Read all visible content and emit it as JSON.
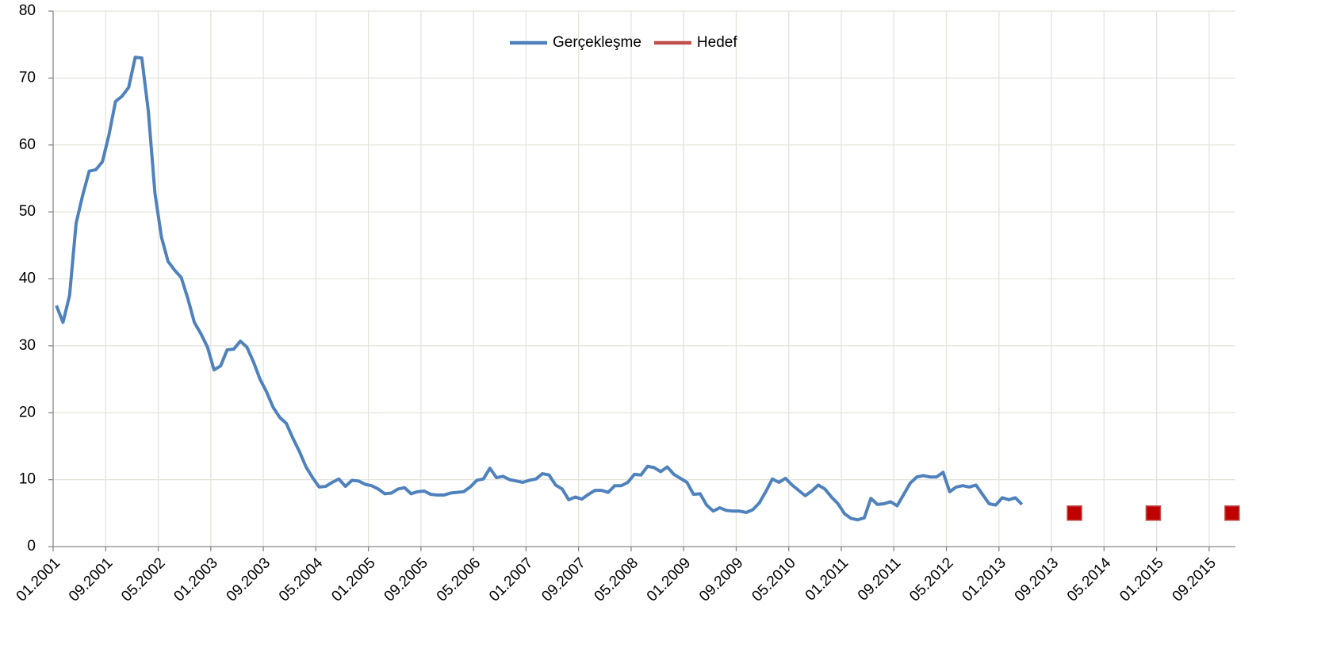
{
  "chart_data": {
    "type": "line",
    "categories": [
      "01.2001",
      null,
      null,
      null,
      null,
      null,
      null,
      null,
      "09.2001",
      null,
      null,
      null,
      null,
      null,
      null,
      null,
      "05.2002",
      null,
      null,
      null,
      null,
      null,
      null,
      null,
      "01.2003",
      null,
      null,
      null,
      null,
      null,
      null,
      null,
      "09.2003",
      null,
      null,
      null,
      null,
      null,
      null,
      null,
      "05.2004",
      null,
      null,
      null,
      null,
      null,
      null,
      null,
      "01.2005",
      null,
      null,
      null,
      null,
      null,
      null,
      null,
      "09.2005",
      null,
      null,
      null,
      null,
      null,
      null,
      null,
      "05.2006",
      null,
      null,
      null,
      null,
      null,
      null,
      null,
      "01.2007",
      null,
      null,
      null,
      null,
      null,
      null,
      null,
      "09.2007",
      null,
      null,
      null,
      null,
      null,
      null,
      null,
      "05.2008",
      null,
      null,
      null,
      null,
      null,
      null,
      null,
      "01.2009",
      null,
      null,
      null,
      null,
      null,
      null,
      null,
      "09.2009",
      null,
      null,
      null,
      null,
      null,
      null,
      null,
      "05.2010",
      null,
      null,
      null,
      null,
      null,
      null,
      null,
      "01.2011",
      null,
      null,
      null,
      null,
      null,
      null,
      null,
      "09.2011",
      null,
      null,
      null,
      null,
      null,
      null,
      null,
      "05.2012",
      null,
      null,
      null,
      null,
      null,
      null,
      null,
      "01.2013",
      null,
      null,
      null,
      null,
      null,
      null,
      null,
      "09.2013",
      null,
      null,
      null,
      null,
      null,
      null,
      null,
      "05.2014",
      null,
      null,
      null,
      null,
      null,
      null,
      null,
      "01.2015",
      null,
      null,
      null,
      null,
      null,
      null,
      null,
      "09.2015",
      null,
      null,
      null
    ],
    "series": [
      {
        "name": "Gerçekleşme",
        "color": "#4f81bd",
        "marker": "none",
        "values": [
          36,
          33.5,
          37.5,
          48.3,
          52.5,
          56.1,
          56.3,
          57.5,
          61.5,
          66.5,
          67.3,
          68.6,
          73.1,
          73,
          65,
          52.8,
          46.2,
          42.6,
          41.3,
          40.2,
          37.1,
          33.5,
          31.8,
          29.8,
          26.4,
          27,
          29.4,
          29.5,
          30.7,
          29.8,
          27.6,
          25,
          23.1,
          20.8,
          19.3,
          18.4,
          16.2,
          14.2,
          11.9,
          10.3,
          8.9,
          9,
          9.6,
          10.1,
          9,
          9.9,
          9.8,
          9.3,
          9.1,
          8.6,
          7.9,
          8,
          8.6,
          8.8,
          7.9,
          8.2,
          8.3,
          7.8,
          7.7,
          7.7,
          8,
          8.1,
          8.2,
          8.9,
          9.9,
          10.1,
          11.7,
          10.3,
          10.5,
          10,
          9.8,
          9.6,
          9.9,
          10.1,
          10.9,
          10.7,
          9.2,
          8.6,
          7,
          7.4,
          7.1,
          7.8,
          8.4,
          8.4,
          8.1,
          9.1,
          9.1,
          9.6,
          10.8,
          10.7,
          12,
          11.8,
          11.2,
          11.9,
          10.8,
          10.2,
          9.6,
          7.8,
          7.9,
          6.2,
          5.3,
          5.8,
          5.4,
          5.3,
          5.3,
          5.1,
          5.5,
          6.5,
          8.2,
          10.1,
          9.6,
          10.2,
          9.2,
          8.4,
          7.6,
          8.3,
          9.2,
          8.6,
          7.4,
          6.4,
          4.9,
          4.2,
          4,
          4.3,
          7.2,
          6.3,
          6.4,
          6.7,
          6.1,
          7.8,
          9.5,
          10.4,
          10.6,
          10.4,
          10.4,
          11.1,
          8.2,
          8.9,
          9.1,
          8.9,
          9.2,
          7.8,
          6.4,
          6.2,
          7.3,
          7,
          7.3,
          6.3,
          null,
          null,
          null,
          null,
          null,
          null,
          null,
          null,
          null,
          null,
          null,
          null,
          null,
          null,
          null,
          null,
          null,
          null,
          null,
          null,
          null,
          null,
          null,
          null,
          null,
          null,
          null,
          null,
          null,
          null,
          null,
          null
        ]
      },
      {
        "name": "Hedef",
        "color": "#c0504d",
        "marker": "square",
        "values": [
          null,
          null,
          null,
          null,
          null,
          null,
          null,
          null,
          null,
          null,
          null,
          null,
          null,
          null,
          null,
          null,
          null,
          null,
          null,
          null,
          null,
          null,
          null,
          null,
          null,
          null,
          null,
          null,
          null,
          null,
          null,
          null,
          null,
          null,
          null,
          null,
          null,
          null,
          null,
          null,
          null,
          null,
          null,
          null,
          null,
          null,
          null,
          null,
          null,
          null,
          null,
          null,
          null,
          null,
          null,
          null,
          null,
          null,
          null,
          null,
          null,
          null,
          null,
          null,
          null,
          null,
          null,
          null,
          null,
          null,
          null,
          null,
          null,
          null,
          null,
          null,
          null,
          null,
          null,
          null,
          null,
          null,
          null,
          null,
          null,
          null,
          null,
          null,
          null,
          null,
          null,
          null,
          null,
          null,
          null,
          null,
          null,
          null,
          null,
          null,
          null,
          null,
          null,
          null,
          null,
          null,
          null,
          null,
          null,
          null,
          null,
          null,
          null,
          null,
          null,
          null,
          null,
          null,
          null,
          null,
          null,
          null,
          null,
          null,
          null,
          null,
          null,
          null,
          null,
          null,
          null,
          null,
          null,
          null,
          null,
          null,
          null,
          null,
          null,
          null,
          null,
          null,
          null,
          null,
          null,
          null,
          null,
          null,
          null,
          null,
          null,
          null,
          null,
          null,
          null,
          5,
          null,
          null,
          null,
          null,
          null,
          null,
          null,
          null,
          null,
          null,
          null,
          5,
          null,
          null,
          null,
          null,
          null,
          null,
          null,
          null,
          null,
          null,
          null,
          5
        ]
      }
    ],
    "ylim": [
      0,
      80
    ],
    "yticks": [
      0,
      10,
      20,
      30,
      40,
      50,
      60,
      70,
      80
    ],
    "grid": true,
    "legend": "top"
  }
}
